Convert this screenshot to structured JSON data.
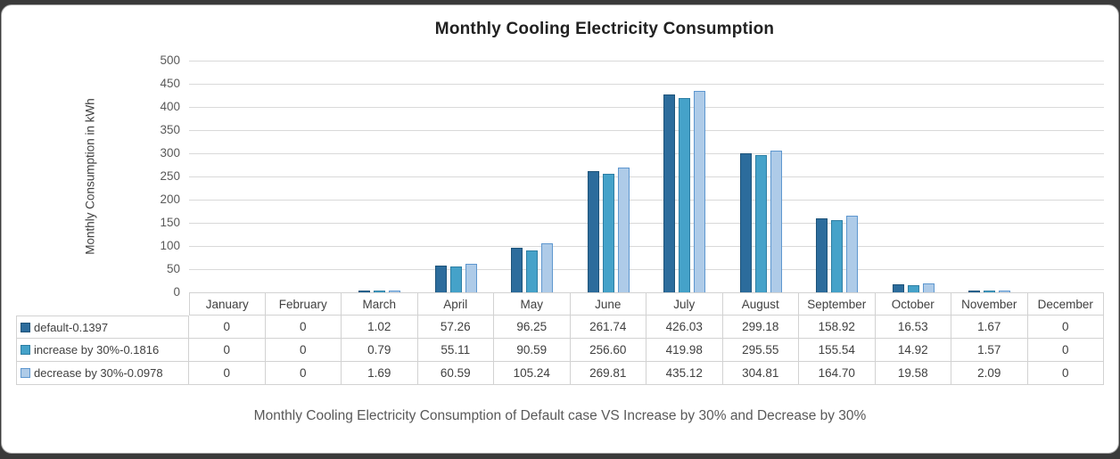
{
  "chart": {
    "title": "Monthly Cooling Electricity Consumption",
    "y_axis_title": "Monthly Consumption in kWh",
    "subtitle": "Monthly Cooling Electricity Consumption of Default case VS Increase by 30% and Decrease by 30%"
  },
  "chart_data": {
    "type": "bar",
    "title": "Monthly Cooling Electricity Consumption",
    "subtitle": "Monthly Cooling Electricity Consumption of Default case VS Increase by 30% and Decrease by 30%",
    "xlabel": "",
    "ylabel": "Monthly Consumption in kWh",
    "ylim": [
      0,
      500
    ],
    "ytick_step": 50,
    "grid": true,
    "legend_position": "data-table-left",
    "categories": [
      "January",
      "February",
      "March",
      "April",
      "May",
      "June",
      "July",
      "August",
      "September",
      "October",
      "November",
      "December"
    ],
    "series": [
      {
        "name": "default-0.1397",
        "color": "#2c6c9c",
        "border": "#1d5379",
        "values": [
          0,
          0,
          1.02,
          57.26,
          96.25,
          261.74,
          426.03,
          299.18,
          158.92,
          16.53,
          1.67,
          0
        ]
      },
      {
        "name": "increase by 30%-0.1816",
        "color": "#45a2c9",
        "border": "#2d7ea3",
        "values": [
          0,
          0,
          0.79,
          55.11,
          90.59,
          256.6,
          419.98,
          295.55,
          155.54,
          14.92,
          1.57,
          0
        ]
      },
      {
        "name": "decrease by 30%-0.0978",
        "color": "#aecbe8",
        "border": "#5e97cf",
        "values": [
          0,
          0,
          1.69,
          60.59,
          105.24,
          269.81,
          435.12,
          304.81,
          164.7,
          19.58,
          2.09,
          0
        ]
      }
    ]
  }
}
